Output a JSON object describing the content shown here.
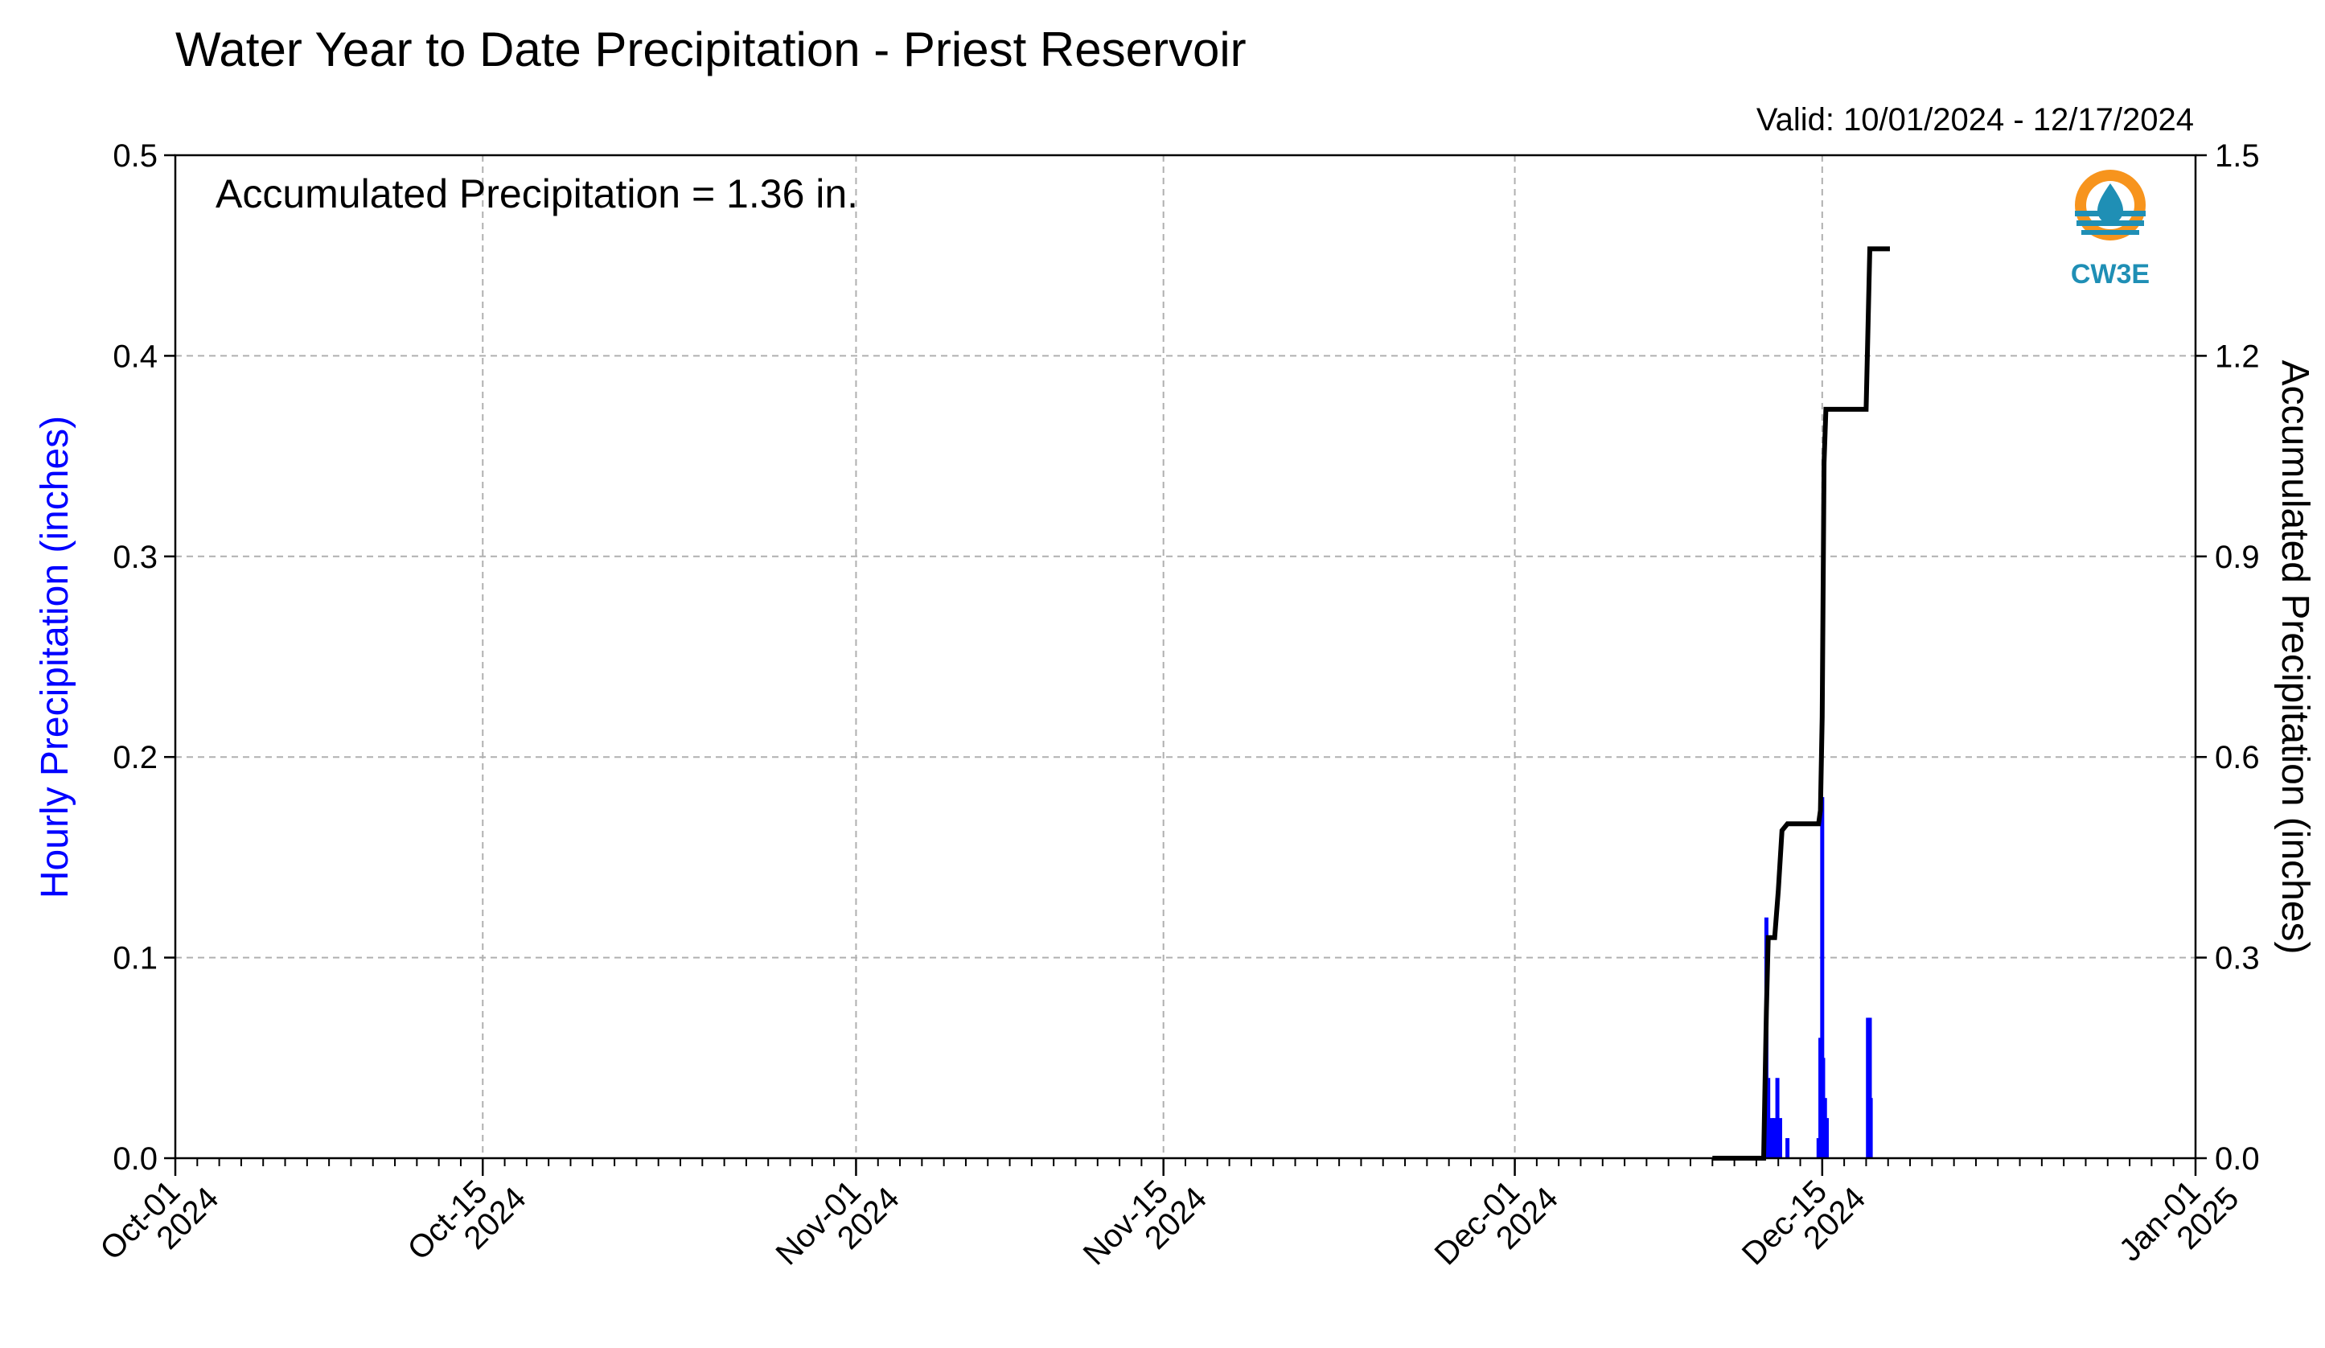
{
  "chart_data": {
    "type": "bar+line",
    "title": "Water Year to Date Precipitation - Priest Reservoir",
    "valid_text": "Valid: 10/01/2024 - 12/17/2024",
    "annotation": "Accumulated Precipitation = 1.36 in.",
    "logo_text": "CW3E",
    "ylabel_left": "Hourly Precipitation (inches)",
    "ylabel_right": "Accumulated Precipitation (inches)",
    "ylim_left": [
      0,
      0.5
    ],
    "ylim_right": [
      0,
      1.5
    ],
    "xlim": [
      "2024-10-01",
      "2025-01-01"
    ],
    "left_ticks": [
      "0.0",
      "0.1",
      "0.2",
      "0.3",
      "0.4",
      "0.5"
    ],
    "right_ticks": [
      "0.0",
      "0.3",
      "0.6",
      "0.9",
      "1.2",
      "1.5"
    ],
    "x_ticks": [
      {
        "date": "2024-10-01",
        "l1": "Oct-01",
        "l2": "2024"
      },
      {
        "date": "2024-10-15",
        "l1": "Oct-15",
        "l2": "2024"
      },
      {
        "date": "2024-11-01",
        "l1": "Nov-01",
        "l2": "2024"
      },
      {
        "date": "2024-11-15",
        "l1": "Nov-15",
        "l2": "2024"
      },
      {
        "date": "2024-12-01",
        "l1": "Dec-01",
        "l2": "2024"
      },
      {
        "date": "2024-12-15",
        "l1": "Dec-15",
        "l2": "2024"
      },
      {
        "date": "2025-01-01",
        "l1": "Jan-01",
        "l2": "2025"
      }
    ],
    "grid": true,
    "colors": {
      "hourly": "#0000ff",
      "accumulated": "#000000",
      "logo_orange": "#f7941d",
      "logo_blue": "#1f8fb5"
    },
    "hourly_series": {
      "name": "Hourly Precipitation",
      "points": [
        [
          "2024-12-12T11:00",
          0.12
        ],
        [
          "2024-12-12T13:00",
          0.04
        ],
        [
          "2024-12-12T17:00",
          0.02
        ],
        [
          "2024-12-12T20:00",
          0.02
        ],
        [
          "2024-12-12T23:00",
          0.04
        ],
        [
          "2024-12-13T02:00",
          0.02
        ],
        [
          "2024-12-13T10:00",
          0.01
        ],
        [
          "2024-12-14T20:00",
          0.01
        ],
        [
          "2024-12-14T22:00",
          0.06
        ],
        [
          "2024-12-15T00:00",
          0.18
        ],
        [
          "2024-12-15T01:00",
          0.05
        ],
        [
          "2024-12-15T03:00",
          0.03
        ],
        [
          "2024-12-15T05:00",
          0.02
        ],
        [
          "2024-12-17T02:00",
          0.07
        ],
        [
          "2024-12-17T04:00",
          0.07
        ],
        [
          "2024-12-17T05:00",
          0.03
        ]
      ]
    },
    "accumulated_series": {
      "name": "Accumulated Precipitation",
      "points": [
        [
          "2024-12-10T00:00",
          0.0
        ],
        [
          "2024-12-12T08:00",
          0.0
        ],
        [
          "2024-12-12T11:00",
          0.22
        ],
        [
          "2024-12-12T13:00",
          0.33
        ],
        [
          "2024-12-12T20:00",
          0.33
        ],
        [
          "2024-12-13T00:00",
          0.4
        ],
        [
          "2024-12-13T04:00",
          0.49
        ],
        [
          "2024-12-13T10:00",
          0.5
        ],
        [
          "2024-12-14T20:00",
          0.5
        ],
        [
          "2024-12-14T22:00",
          0.52
        ],
        [
          "2024-12-15T00:00",
          0.66
        ],
        [
          "2024-12-15T02:00",
          1.04
        ],
        [
          "2024-12-15T04:00",
          1.12
        ],
        [
          "2024-12-17T00:00",
          1.12
        ],
        [
          "2024-12-17T04:00",
          1.36
        ],
        [
          "2024-12-18T02:00",
          1.36
        ]
      ]
    }
  }
}
